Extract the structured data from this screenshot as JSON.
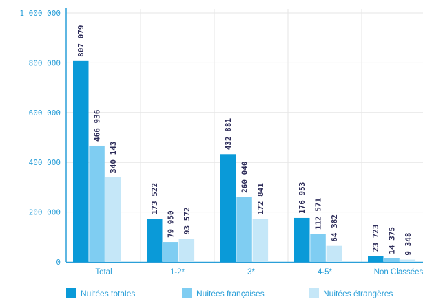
{
  "chart_data": {
    "type": "bar",
    "categories": [
      "Total",
      "1-2*",
      "3*",
      "4-5*",
      "Non Classées"
    ],
    "series": [
      {
        "name": "Nuitées totales",
        "values": [
          807079,
          173522,
          432881,
          176953,
          23723
        ],
        "labels": [
          "807 079",
          "173 522",
          "432 881",
          "176 953",
          "23 723"
        ]
      },
      {
        "name": "Nuitées françaises",
        "values": [
          466936,
          79950,
          260040,
          112571,
          14375
        ],
        "labels": [
          "466 936",
          "79 950",
          "260 040",
          "112 571",
          "14 375"
        ]
      },
      {
        "name": "Nuitées étrangères",
        "values": [
          340143,
          93572,
          172841,
          64382,
          9348
        ],
        "labels": [
          "340 143",
          "93 572",
          "172 841",
          "64 382",
          "9 348"
        ]
      }
    ],
    "yticks": [
      {
        "value": 0,
        "label": "0"
      },
      {
        "value": 200000,
        "label": "200 000"
      },
      {
        "value": 400000,
        "label": "400 000"
      },
      {
        "value": 600000,
        "label": "600 000"
      },
      {
        "value": 800000,
        "label": "800 000"
      },
      {
        "value": 1000000,
        "label": "1 000 000"
      }
    ],
    "ylim": [
      0,
      1000000
    ],
    "grid": true,
    "legend_position": "bottom",
    "colors": {
      "series": [
        "#0a9ad8",
        "#7fcdf2",
        "#c5e7f8"
      ],
      "axis": "#2a9fd8",
      "grid": "#e6e6e6",
      "value_label": "#2d2c59"
    }
  }
}
